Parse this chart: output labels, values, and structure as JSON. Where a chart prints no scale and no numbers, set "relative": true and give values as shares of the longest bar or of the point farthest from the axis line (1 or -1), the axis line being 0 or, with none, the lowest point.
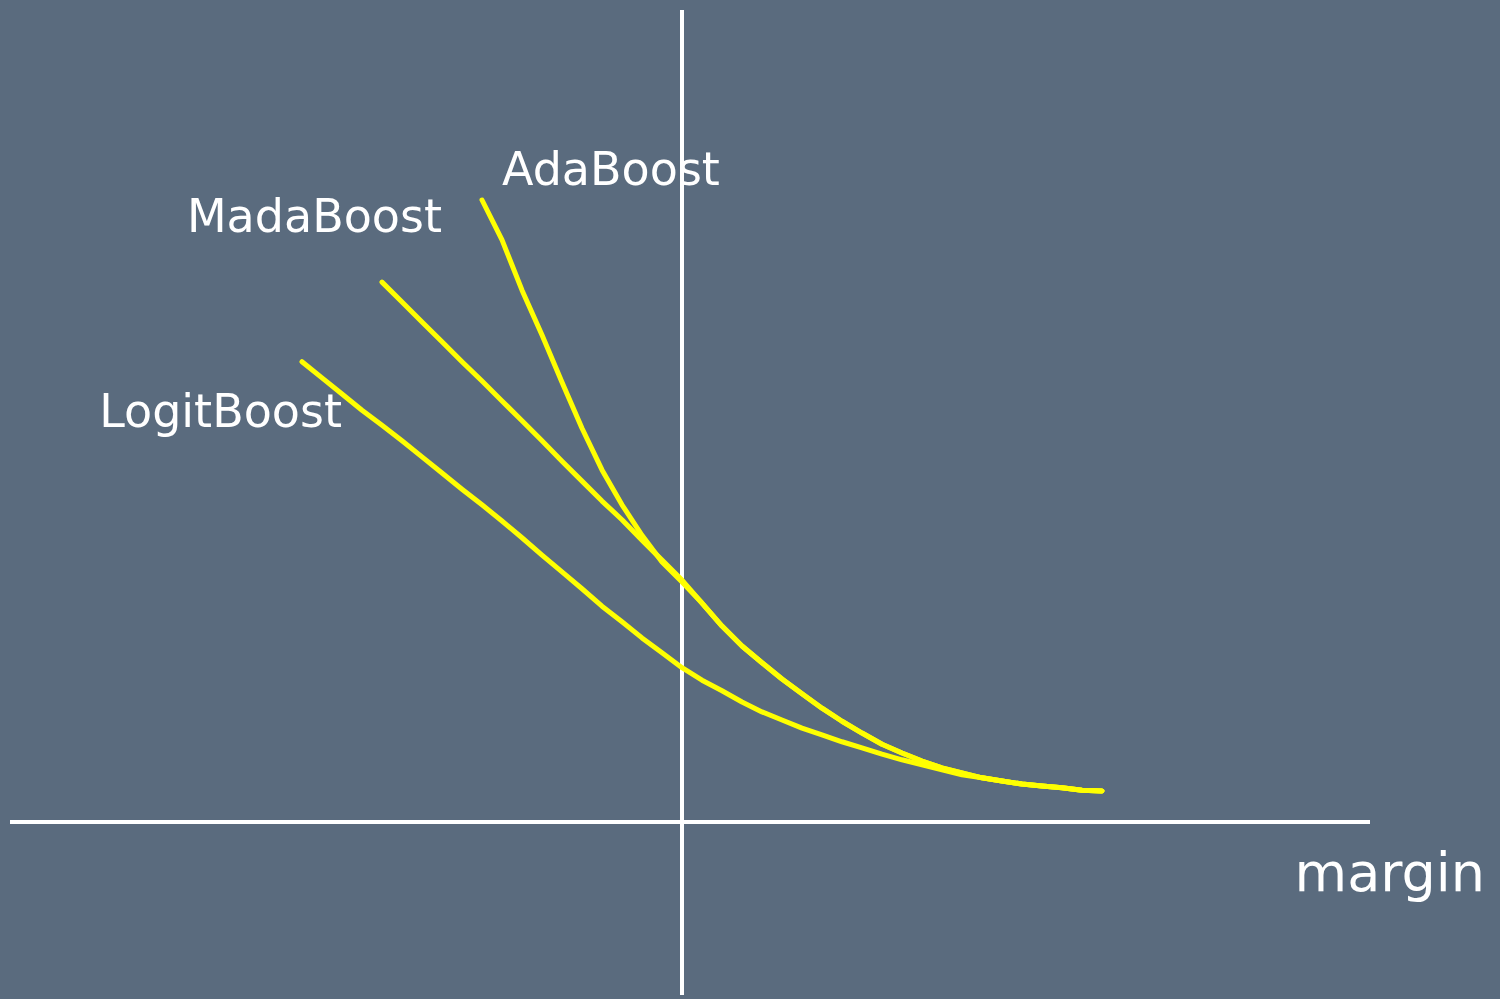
{
  "chart_data": {
    "type": "line",
    "relative": true,
    "xlabel": "margin",
    "legend": false,
    "tick_labels": false,
    "marker": "none",
    "line_style": "solid",
    "categories": [
      null,
      null,
      null,
      null,
      null,
      null,
      null,
      null,
      null,
      null,
      null,
      null,
      null,
      null,
      null,
      null,
      null,
      null,
      null,
      null,
      null,
      null,
      null,
      null,
      null,
      null,
      null,
      null,
      null,
      null,
      null,
      null,
      null,
      null,
      null,
      null,
      null,
      null,
      null,
      null,
      null
    ],
    "series": [
      {
        "name": "AdaBoost",
        "color": "#ffff00",
        "values": [
          null,
          null,
          null,
          null,
          null,
          null,
          null,
          null,
          null,
          1.0,
          0.936,
          0.855,
          0.783,
          0.707,
          0.633,
          0.566,
          0.51,
          0.461,
          0.418,
          0.386,
          0.352,
          0.315,
          0.283,
          0.256,
          0.23,
          0.206,
          0.183,
          0.162,
          0.143,
          0.125,
          0.111,
          0.098,
          0.087,
          0.079,
          0.071,
          0.066,
          0.061,
          0.058,
          0.055,
          0.051,
          0.05
        ]
      },
      {
        "name": "MadaBoost",
        "color": "#ffff00",
        "values": [
          null,
          null,
          null,
          null,
          0.868,
          0.836,
          0.804,
          0.772,
          0.74,
          0.709,
          0.677,
          0.645,
          0.613,
          0.58,
          0.548,
          0.516,
          0.486,
          0.453,
          0.421,
          0.389,
          0.352,
          0.315,
          0.283,
          0.256,
          0.23,
          0.206,
          0.183,
          0.162,
          0.143,
          0.125,
          0.111,
          0.098,
          0.087,
          0.079,
          0.071,
          0.066,
          0.061,
          0.058,
          0.055,
          0.051,
          0.05
        ]
      },
      {
        "name": "LogitBoost",
        "color": "#ffff00",
        "values": [
          0.74,
          0.714,
          0.688,
          0.662,
          0.638,
          0.613,
          0.587,
          0.561,
          0.535,
          0.51,
          0.484,
          0.457,
          0.429,
          0.402,
          0.375,
          0.347,
          0.322,
          0.296,
          0.272,
          0.248,
          0.228,
          0.211,
          0.193,
          0.177,
          0.164,
          0.151,
          0.14,
          0.129,
          0.119,
          0.109,
          0.1,
          0.092,
          0.084,
          0.076,
          0.071,
          0.066,
          0.061,
          0.058,
          0.055,
          0.051,
          0.05
        ]
      }
    ]
  }
}
